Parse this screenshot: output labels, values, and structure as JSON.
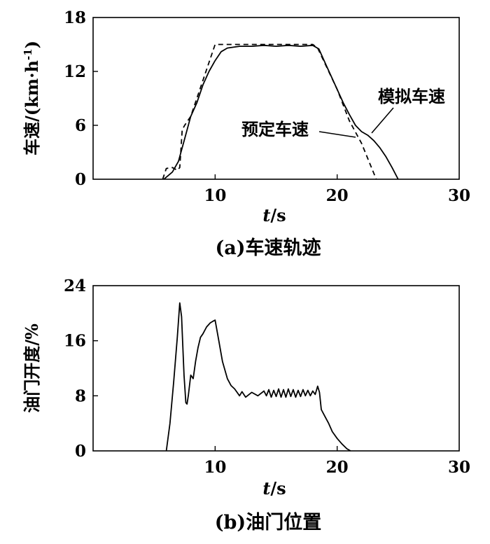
{
  "chart_data": [
    {
      "type": "line",
      "caption": "(a)车速轨迹",
      "xlabel_italic": "t",
      "xlabel_unit": "/s",
      "ylabel": "车速/(km·h",
      "ylabel_sup": "-1",
      "ylabel_close": ")",
      "xlim": [
        0,
        30
      ],
      "ylim": [
        0,
        18
      ],
      "xticks": [
        10,
        20,
        30
      ],
      "yticks": [
        0,
        6,
        12,
        18
      ],
      "annotations": [
        "预定车速",
        "模拟车速"
      ],
      "series": [
        {
          "name": "预定车速",
          "x": [
            5.7,
            6.0,
            6.5,
            6.9,
            7.1,
            7.3,
            7.5,
            8.0,
            9.0,
            10.0,
            12.0,
            14.0,
            16.0,
            18.0,
            18.4,
            20.0,
            21.0,
            22.0,
            23.2
          ],
          "y": [
            0,
            1.2,
            1.3,
            1.0,
            1.3,
            5.5,
            6.0,
            7.0,
            11.0,
            15.0,
            15.0,
            15.0,
            15.0,
            15.0,
            14.6,
            10.0,
            6.5,
            4.0,
            0
          ]
        },
        {
          "name": "模拟车速",
          "x": [
            5.8,
            6.5,
            7.0,
            7.5,
            8.0,
            8.5,
            9.0,
            9.5,
            10.0,
            10.5,
            11.0,
            12.0,
            13.0,
            14.0,
            15.0,
            16.0,
            17.0,
            18.0,
            18.5,
            19.0,
            19.5,
            20.0,
            20.5,
            21.0,
            21.5,
            22.0,
            22.5,
            23.0,
            23.5,
            24.0,
            24.5,
            25.0
          ],
          "y": [
            0,
            0.8,
            2.0,
            4.5,
            7.0,
            8.5,
            10.5,
            12.0,
            13.2,
            14.2,
            14.6,
            14.8,
            14.8,
            14.9,
            14.8,
            14.9,
            14.8,
            14.9,
            14.5,
            13.0,
            11.5,
            10.0,
            8.5,
            7.2,
            6.0,
            5.3,
            4.9,
            4.3,
            3.5,
            2.5,
            1.3,
            0
          ]
        }
      ]
    },
    {
      "type": "line",
      "caption": "(b)油门位置",
      "xlabel_italic": "t",
      "xlabel_unit": "/s",
      "ylabel": "油门开度/%",
      "xlim": [
        0,
        30
      ],
      "ylim": [
        0,
        24
      ],
      "xticks": [
        10,
        20,
        30
      ],
      "yticks": [
        0,
        8,
        16,
        24
      ],
      "series": [
        {
          "name": "",
          "x": [
            6.0,
            6.3,
            6.6,
            6.9,
            7.1,
            7.25,
            7.45,
            7.6,
            7.7,
            7.8,
            8.0,
            8.2,
            8.4,
            8.6,
            8.8,
            9.0,
            9.3,
            9.6,
            9.8,
            10.0,
            10.3,
            10.6,
            11.0,
            11.3,
            11.6,
            11.8,
            12.0,
            12.2,
            12.5,
            13.0,
            13.5,
            14.0,
            14.2,
            14.4,
            14.6,
            14.8,
            15.0,
            15.2,
            15.4,
            15.6,
            15.8,
            16.0,
            16.2,
            16.4,
            16.6,
            16.8,
            17.0,
            17.2,
            17.4,
            17.6,
            17.8,
            18.0,
            18.2,
            18.4,
            18.55,
            18.7,
            19.0,
            19.3,
            19.6,
            20.0,
            20.4,
            20.8,
            21.1
          ],
          "y": [
            0,
            4.0,
            10.0,
            16.5,
            21.5,
            19.5,
            11.0,
            7.0,
            6.8,
            8.0,
            11.0,
            10.5,
            13.0,
            15.0,
            16.5,
            17.0,
            18.0,
            18.6,
            18.8,
            19.0,
            16.0,
            13.0,
            10.5,
            9.5,
            9.0,
            8.5,
            8.0,
            8.6,
            7.8,
            8.5,
            8.0,
            8.7,
            8.0,
            8.9,
            7.8,
            8.8,
            7.9,
            9.0,
            7.8,
            8.9,
            7.8,
            9.0,
            7.9,
            8.9,
            7.8,
            8.8,
            7.9,
            8.9,
            8.0,
            8.8,
            8.0,
            8.7,
            8.2,
            9.4,
            8.5,
            6.0,
            5.0,
            4.0,
            2.8,
            1.8,
            1.0,
            0.3,
            0
          ]
        }
      ]
    }
  ]
}
